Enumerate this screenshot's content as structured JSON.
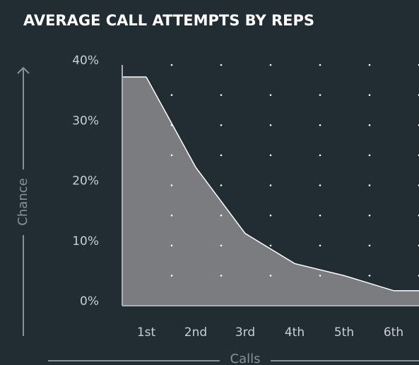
{
  "chart_data": {
    "type": "area",
    "title": "AVERAGE CALL ATTEMPTS BY REPS",
    "x_label": "Calls",
    "y_label": "Chance",
    "categories": [
      "1st",
      "2nd",
      "3rd",
      "4th",
      "5th",
      "6th"
    ],
    "values": [
      38,
      23,
      12,
      7,
      5,
      2.5
    ],
    "color": "#7b7c80",
    "line_color": "#ffffff",
    "ylim": [
      0,
      40
    ],
    "yticks": [
      {
        "value": 0,
        "label": "0%"
      },
      {
        "value": 10,
        "label": "10%"
      },
      {
        "value": 20,
        "label": "20%"
      },
      {
        "value": 30,
        "label": "30%"
      },
      {
        "value": 40,
        "label": "40%"
      }
    ],
    "grid": true
  }
}
